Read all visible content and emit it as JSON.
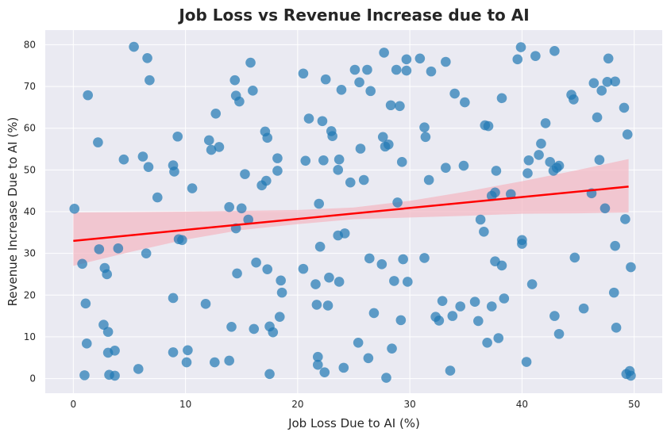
{
  "chart_data": {
    "type": "scatter",
    "title": "Job Loss vs Revenue Increase due to AI",
    "xlabel": "Job Loss Due to AI (%)",
    "ylabel": "Revenue Increase Due to AI (%)",
    "xlim": [
      -2.5,
      52.5
    ],
    "ylim": [
      -3.5,
      83.5
    ],
    "xticks": [
      0,
      10,
      20,
      30,
      40,
      50
    ],
    "yticks": [
      0,
      10,
      20,
      30,
      40,
      50,
      60,
      70,
      80
    ],
    "grid": true,
    "colors": {
      "background": "#eaeaf2",
      "grid": "#ffffff",
      "points": "#1f77b4",
      "regression_line": "#ff0000",
      "confidence_band": "#f4b6c2"
    },
    "regression": {
      "x": [
        0,
        49.5
      ],
      "y": [
        33,
        46
      ],
      "ci_upper": [
        [
          0,
          39.8
        ],
        [
          10,
          40.0
        ],
        [
          20,
          40.4
        ],
        [
          25,
          41.0
        ],
        [
          30,
          42.6
        ],
        [
          35,
          44.8
        ],
        [
          40,
          47.3
        ],
        [
          45,
          50.0
        ],
        [
          49.5,
          52.6
        ]
      ],
      "ci_lower": [
        [
          0,
          27.0
        ],
        [
          5,
          30.3
        ],
        [
          10,
          33.3
        ],
        [
          15,
          35.6
        ],
        [
          20,
          37.0
        ],
        [
          25,
          38.2
        ],
        [
          30,
          38.6
        ],
        [
          35,
          39.0
        ],
        [
          40,
          39.5
        ],
        [
          45,
          39.6
        ],
        [
          49.5,
          39.8
        ]
      ]
    },
    "points": [
      [
        0.1,
        40.7
      ],
      [
        0.8,
        27.5
      ],
      [
        1.0,
        0.8
      ],
      [
        1.1,
        18.0
      ],
      [
        1.2,
        8.4
      ],
      [
        1.3,
        67.9
      ],
      [
        2.2,
        56.6
      ],
      [
        2.3,
        31.0
      ],
      [
        2.7,
        12.9
      ],
      [
        2.8,
        26.5
      ],
      [
        3.0,
        25.0
      ],
      [
        3.1,
        6.2
      ],
      [
        3.1,
        11.2
      ],
      [
        3.2,
        0.9
      ],
      [
        3.7,
        6.7
      ],
      [
        3.7,
        0.7
      ],
      [
        4.0,
        31.2
      ],
      [
        4.5,
        52.5
      ],
      [
        5.4,
        79.5
      ],
      [
        5.8,
        2.3
      ],
      [
        6.2,
        53.2
      ],
      [
        6.5,
        30.0
      ],
      [
        6.6,
        76.8
      ],
      [
        6.7,
        50.7
      ],
      [
        6.8,
        71.5
      ],
      [
        7.5,
        43.4
      ],
      [
        8.9,
        51.1
      ],
      [
        8.9,
        19.3
      ],
      [
        8.9,
        6.3
      ],
      [
        9.0,
        49.6
      ],
      [
        9.3,
        58.0
      ],
      [
        9.4,
        33.4
      ],
      [
        9.7,
        33.2
      ],
      [
        10.1,
        3.9
      ],
      [
        10.2,
        6.8
      ],
      [
        10.6,
        45.6
      ],
      [
        11.8,
        17.9
      ],
      [
        12.1,
        57.1
      ],
      [
        12.3,
        54.8
      ],
      [
        12.6,
        3.9
      ],
      [
        12.7,
        63.5
      ],
      [
        13.0,
        55.5
      ],
      [
        13.9,
        41.1
      ],
      [
        13.9,
        4.3
      ],
      [
        14.1,
        12.4
      ],
      [
        14.4,
        71.5
      ],
      [
        14.5,
        67.8
      ],
      [
        14.5,
        36.0
      ],
      [
        14.6,
        25.2
      ],
      [
        14.8,
        66.4
      ],
      [
        15.0,
        40.8
      ],
      [
        15.3,
        49.0
      ],
      [
        15.6,
        38.1
      ],
      [
        15.8,
        75.7
      ],
      [
        16.0,
        69.0
      ],
      [
        16.1,
        11.9
      ],
      [
        16.3,
        27.8
      ],
      [
        16.8,
        46.3
      ],
      [
        17.1,
        59.2
      ],
      [
        17.2,
        47.4
      ],
      [
        17.3,
        57.7
      ],
      [
        17.3,
        26.2
      ],
      [
        17.5,
        12.5
      ],
      [
        17.5,
        1.1
      ],
      [
        17.8,
        11.1
      ],
      [
        18.2,
        52.8
      ],
      [
        18.2,
        49.8
      ],
      [
        18.4,
        14.8
      ],
      [
        18.5,
        23.5
      ],
      [
        18.6,
        20.6
      ],
      [
        20.5,
        73.1
      ],
      [
        20.5,
        26.3
      ],
      [
        20.7,
        52.2
      ],
      [
        21.0,
        62.3
      ],
      [
        21.6,
        22.6
      ],
      [
        21.7,
        17.7
      ],
      [
        21.8,
        5.2
      ],
      [
        21.8,
        3.3
      ],
      [
        21.9,
        41.9
      ],
      [
        22.0,
        31.6
      ],
      [
        22.2,
        61.7
      ],
      [
        22.3,
        52.3
      ],
      [
        22.4,
        1.5
      ],
      [
        22.5,
        71.7
      ],
      [
        22.7,
        17.5
      ],
      [
        22.8,
        24.2
      ],
      [
        23.0,
        59.3
      ],
      [
        23.1,
        58.1
      ],
      [
        23.6,
        50.0
      ],
      [
        23.6,
        34.3
      ],
      [
        23.7,
        23.2
      ],
      [
        23.7,
        52.5
      ],
      [
        23.9,
        69.2
      ],
      [
        24.1,
        2.6
      ],
      [
        24.2,
        34.8
      ],
      [
        24.7,
        47.0
      ],
      [
        25.1,
        74.0
      ],
      [
        25.4,
        8.6
      ],
      [
        25.5,
        71.0
      ],
      [
        25.6,
        55.1
      ],
      [
        25.9,
        47.6
      ],
      [
        26.2,
        74.0
      ],
      [
        26.3,
        4.9
      ],
      [
        26.4,
        28.8
      ],
      [
        26.5,
        68.9
      ],
      [
        26.8,
        15.7
      ],
      [
        27.5,
        27.4
      ],
      [
        27.6,
        57.9
      ],
      [
        27.7,
        78.1
      ],
      [
        27.8,
        55.6
      ],
      [
        27.9,
        0.2
      ],
      [
        28.1,
        56.1
      ],
      [
        28.3,
        65.5
      ],
      [
        28.4,
        7.2
      ],
      [
        28.6,
        23.4
      ],
      [
        28.8,
        74.0
      ],
      [
        28.9,
        42.2
      ],
      [
        29.1,
        65.3
      ],
      [
        29.2,
        14.0
      ],
      [
        29.3,
        51.9
      ],
      [
        29.4,
        28.6
      ],
      [
        29.7,
        76.5
      ],
      [
        29.8,
        23.2
      ],
      [
        29.7,
        73.8
      ],
      [
        30.9,
        76.7
      ],
      [
        31.3,
        60.2
      ],
      [
        31.3,
        28.9
      ],
      [
        31.4,
        57.9
      ],
      [
        31.7,
        47.6
      ],
      [
        31.9,
        73.6
      ],
      [
        32.3,
        14.8
      ],
      [
        32.6,
        13.9
      ],
      [
        32.9,
        18.6
      ],
      [
        33.2,
        50.5
      ],
      [
        33.2,
        75.9
      ],
      [
        33.6,
        1.9
      ],
      [
        33.8,
        15.0
      ],
      [
        34.0,
        68.3
      ],
      [
        34.5,
        17.3
      ],
      [
        34.8,
        51.0
      ],
      [
        34.9,
        66.2
      ],
      [
        35.8,
        18.4
      ],
      [
        36.1,
        13.8
      ],
      [
        36.3,
        38.1
      ],
      [
        36.6,
        35.2
      ],
      [
        36.7,
        60.7
      ],
      [
        36.9,
        8.6
      ],
      [
        37.0,
        60.5
      ],
      [
        37.3,
        43.8
      ],
      [
        37.3,
        17.3
      ],
      [
        37.6,
        44.6
      ],
      [
        37.6,
        28.1
      ],
      [
        37.7,
        49.8
      ],
      [
        37.9,
        9.7
      ],
      [
        38.2,
        27.1
      ],
      [
        38.2,
        67.2
      ],
      [
        38.4,
        19.2
      ],
      [
        39.0,
        44.2
      ],
      [
        39.6,
        76.5
      ],
      [
        39.9,
        79.4
      ],
      [
        40.0,
        33.2
      ],
      [
        40.0,
        32.3
      ],
      [
        40.4,
        4.0
      ],
      [
        40.5,
        49.2
      ],
      [
        40.6,
        52.3
      ],
      [
        40.9,
        22.6
      ],
      [
        41.2,
        77.3
      ],
      [
        41.5,
        53.6
      ],
      [
        41.7,
        56.3
      ],
      [
        42.1,
        61.2
      ],
      [
        42.5,
        51.9
      ],
      [
        42.8,
        49.8
      ],
      [
        42.9,
        78.5
      ],
      [
        42.9,
        15.0
      ],
      [
        43.1,
        50.5
      ],
      [
        43.3,
        51.0
      ],
      [
        43.3,
        10.7
      ],
      [
        44.4,
        68.0
      ],
      [
        44.6,
        66.9
      ],
      [
        44.7,
        29.0
      ],
      [
        45.5,
        16.8
      ],
      [
        46.2,
        44.4
      ],
      [
        46.4,
        70.8
      ],
      [
        46.7,
        62.6
      ],
      [
        46.9,
        52.4
      ],
      [
        47.1,
        69.0
      ],
      [
        47.4,
        40.8
      ],
      [
        47.6,
        71.1
      ],
      [
        47.7,
        76.7
      ],
      [
        48.2,
        20.6
      ],
      [
        48.3,
        31.8
      ],
      [
        48.3,
        71.2
      ],
      [
        48.4,
        12.2
      ],
      [
        49.1,
        64.9
      ],
      [
        49.2,
        38.2
      ],
      [
        49.3,
        1.1
      ],
      [
        49.4,
        58.5
      ],
      [
        49.6,
        1.8
      ],
      [
        49.7,
        26.7
      ],
      [
        49.7,
        0.7
      ]
    ]
  }
}
